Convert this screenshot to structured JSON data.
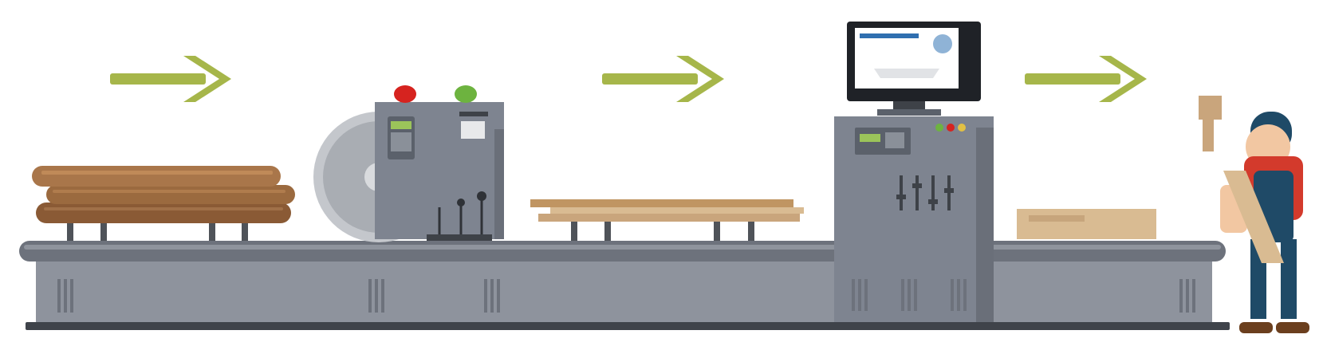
{
  "scene": {
    "colors": {
      "background": "#ffffff",
      "arrow": "#a6b64a",
      "machine_body": "#7e8490",
      "machine_dark": "#5b616b",
      "conveyor_top": "#6d727c",
      "conveyor_body": "#8e939d",
      "wood_dark": "#8a5a35",
      "wood_mid": "#a9764a",
      "plank_light": "#c9a57c",
      "button_red": "#d6231f",
      "button_green": "#6db33f",
      "screen_bg": "#1f2227",
      "worker_shirt": "#d33a2c",
      "worker_overalls": "#1f4a67"
    },
    "icons": [
      "arrow-right-icon",
      "log-pile-icon",
      "circular-saw-icon",
      "control-machine-icon",
      "monitor-icon",
      "worker-icon"
    ]
  }
}
